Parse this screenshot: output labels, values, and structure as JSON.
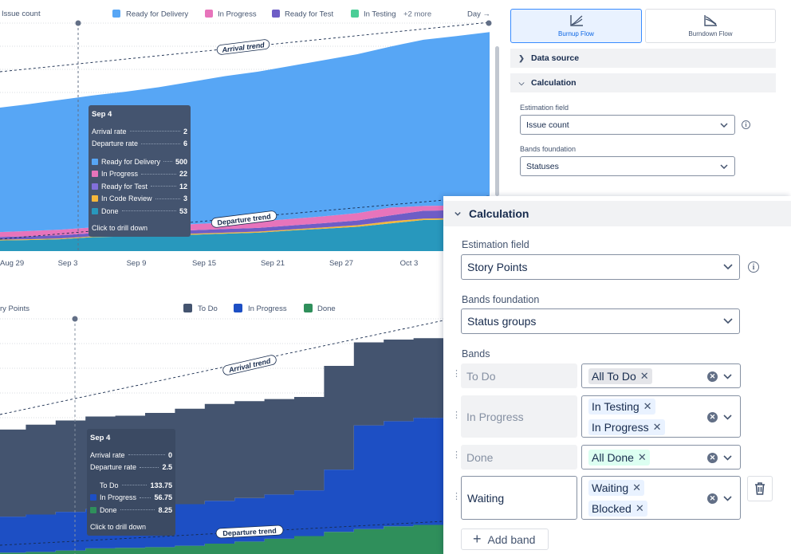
{
  "top_chart": {
    "ylabel": "Issue count",
    "legend": [
      {
        "name": "Ready for Delivery",
        "color": "#57a6f5"
      },
      {
        "name": "In Progress",
        "color": "#e774bb"
      },
      {
        "name": "Ready for Test",
        "color": "#6e5dc6"
      },
      {
        "name": "In Testing",
        "color": "#4bce97"
      }
    ],
    "legend_more": "+2 more",
    "day_label": "Day →",
    "arrival_trend_label": "Arrival trend",
    "departure_trend_label": "Departure trend",
    "tooltip": {
      "title": "Sep 4",
      "arrival_rate_label": "Arrival rate",
      "arrival_rate": "2",
      "departure_rate_label": "Departure rate",
      "departure_rate": "6",
      "rows": [
        {
          "label": "Ready for Delivery",
          "value": "500",
          "color": "#57a6f5"
        },
        {
          "label": "In Progress",
          "value": "22",
          "color": "#e774bb"
        },
        {
          "label": "Ready for Test",
          "value": "12",
          "color": "#8270db"
        },
        {
          "label": "In Code Review",
          "value": "3",
          "color": "#f5b73b"
        },
        {
          "label": "Done",
          "value": "53",
          "color": "#2898bd"
        }
      ],
      "footer": "Click to drill down"
    }
  },
  "bottom_chart": {
    "ylabel": "ry Points",
    "legend": [
      {
        "name": "To Do",
        "color": "#44546f"
      },
      {
        "name": "In Progress",
        "color": "#1d4fc4"
      },
      {
        "name": "Done",
        "color": "#2f8f5b"
      }
    ],
    "arrival_trend_label": "Arrival trend",
    "departure_trend_label": "Departure trend",
    "tooltip": {
      "title": "Sep 4",
      "arrival_rate_label": "Arrival rate",
      "arrival_rate": "0",
      "departure_rate_label": "Departure rate",
      "departure_rate": "2.5",
      "rows": [
        {
          "label": "To Do",
          "value": "133.75",
          "color": "#44546f"
        },
        {
          "label": "In Progress",
          "value": "56.75",
          "color": "#1d4fc4"
        },
        {
          "label": "Done",
          "value": "8.25",
          "color": "#2f8f5b"
        }
      ],
      "footer": "Click to drill down"
    }
  },
  "chart_data": [
    {
      "type": "area",
      "stacked": true,
      "ylabel": "Issue count",
      "x_ticks": [
        "Aug 29",
        "Sep 3",
        "Sep 9",
        "Sep 15",
        "Sep 21",
        "Sep 27",
        "Oct 3"
      ],
      "x": [
        "Aug 29",
        "Sep 1",
        "Sep 3",
        "Sep 4",
        "Sep 6",
        "Sep 9",
        "Sep 12",
        "Sep 15",
        "Sep 18",
        "Sep 21",
        "Sep 24",
        "Sep 27",
        "Sep 29",
        "Oct 1",
        "Oct 3",
        "Oct 5"
      ],
      "series": [
        {
          "name": "Done",
          "values": [
            40,
            42,
            45,
            53,
            55,
            58,
            62,
            66,
            70,
            78,
            85,
            92,
            105,
            118,
            120,
            122
          ]
        },
        {
          "name": "In Code Review",
          "values": [
            3,
            3,
            3,
            3,
            3,
            3,
            4,
            4,
            4,
            4,
            5,
            6,
            8,
            5,
            5,
            5
          ]
        },
        {
          "name": "Ready for Test",
          "values": [
            10,
            11,
            12,
            12,
            12,
            13,
            13,
            14,
            14,
            15,
            16,
            18,
            22,
            30,
            30,
            30
          ]
        },
        {
          "name": "In Progress",
          "values": [
            18,
            20,
            21,
            22,
            22,
            22,
            23,
            24,
            24,
            25,
            26,
            28,
            30,
            18,
            18,
            18
          ]
        },
        {
          "name": "Ready for Delivery",
          "values": [
            470,
            480,
            492,
            500,
            512,
            525,
            540,
            555,
            568,
            580,
            592,
            602,
            610,
            630,
            642,
            655
          ]
        }
      ],
      "ylim": [
        0,
        870
      ]
    },
    {
      "type": "area",
      "stacked": true,
      "ylabel": "ry Points",
      "x": [
        "Aug 29",
        "Sep 1",
        "Sep 3",
        "Sep 4",
        "Sep 6",
        "Sep 9",
        "Sep 12",
        "Sep 15",
        "Sep 18",
        "Sep 21",
        "Sep 24",
        "Sep 27",
        "Sep 29",
        "Oct 1",
        "Oct 3",
        "Oct 5"
      ],
      "series": [
        {
          "name": "Done",
          "values": [
            2,
            3,
            5,
            8.25,
            9,
            10,
            12,
            15,
            18,
            22,
            26,
            32,
            36,
            40,
            42,
            44
          ]
        },
        {
          "name": "In Progress",
          "values": [
            52,
            54,
            56,
            56.75,
            57,
            58,
            60,
            62,
            63,
            64,
            66,
            90,
            150,
            152,
            155,
            158
          ]
        },
        {
          "name": "To Do",
          "values": [
            126,
            130,
            132,
            133.75,
            134,
            136,
            138,
            140,
            140,
            138,
            135,
            150,
            120,
            118,
            115,
            112
          ]
        }
      ],
      "ylim": [
        0,
        340
      ]
    }
  ],
  "panel_small": {
    "burnup_label": "Burnup Flow",
    "burndown_label": "Burndown Flow",
    "data_source": "Data source",
    "calculation": "Calculation",
    "estimation_field_label": "Estimation field",
    "estimation_field_value": "Issue count",
    "bands_foundation_label": "Bands foundation",
    "bands_foundation_value": "Statuses"
  },
  "panel_big": {
    "calculation": "Calculation",
    "estimation_field_label": "Estimation field",
    "estimation_field_value": "Story Points",
    "bands_foundation_label": "Bands foundation",
    "bands_foundation_value": "Status groups",
    "bands_label": "Bands",
    "bands": [
      {
        "name": "To Do",
        "chips": [
          "All To Do"
        ]
      },
      {
        "name": "In Progress",
        "chips": [
          "In Testing",
          "In Progress"
        ]
      },
      {
        "name": "Done",
        "chips": [
          "All Done"
        ]
      },
      {
        "name": "Waiting",
        "chips": [
          "Waiting",
          "Blocked"
        ]
      }
    ],
    "add_band": "Add band"
  }
}
